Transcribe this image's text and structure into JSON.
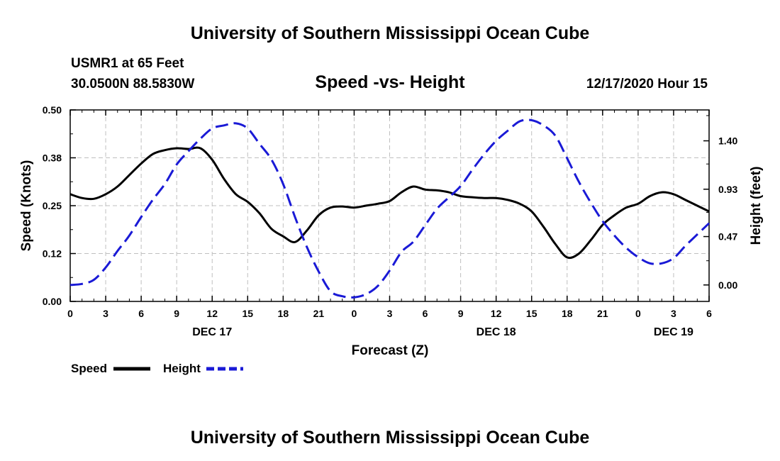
{
  "header": {
    "title": "University of Southern Mississippi Ocean Cube",
    "station": "USMR1 at 65 Feet",
    "location": "30.0500N 88.5830W",
    "plot_title": "Speed -vs- Height",
    "timestamp": "12/17/2020 Hour 15"
  },
  "footer": {
    "title": "University of Southern Mississippi Ocean Cube"
  },
  "legend": {
    "speed_label": "Speed",
    "height_label": "Height"
  },
  "colors": {
    "speed": "#000000",
    "height": "#1a1ad6",
    "grid": "#bfbfbf"
  },
  "chart_data": {
    "type": "line",
    "title": "Speed -vs- Height",
    "xlabel": "Forecast (Z)",
    "ylabel": "Speed (Knots)",
    "y2label": "Height (feet)",
    "xlim": [
      0,
      54
    ],
    "ylim": [
      0,
      0.5
    ],
    "y2lim": [
      -0.16,
      1.7
    ],
    "x_unit": "hours since 12/17 00Z",
    "x_ticks": [
      0,
      3,
      6,
      9,
      12,
      15,
      18,
      21,
      24,
      27,
      30,
      33,
      36,
      39,
      42,
      45,
      48,
      51,
      54
    ],
    "x_tick_labels": [
      "0",
      "3",
      "6",
      "9",
      "12",
      "15",
      "18",
      "21",
      "0",
      "3",
      "6",
      "9",
      "12",
      "15",
      "18",
      "21",
      "0",
      "3",
      "6"
    ],
    "day_labels": [
      {
        "x": 12,
        "label": "DEC 17"
      },
      {
        "x": 36,
        "label": "DEC 18"
      },
      {
        "x": 51,
        "label": "DEC 19"
      }
    ],
    "y_ticks": [
      0.0,
      0.125,
      0.25,
      0.375,
      0.5
    ],
    "y_tick_labels": [
      "0.00",
      "0.12",
      "0.25",
      "0.38",
      "0.50"
    ],
    "y2_ticks": [
      0.0,
      0.47,
      0.93,
      1.4
    ],
    "y2_tick_labels": [
      "0.00",
      "0.47",
      "0.93",
      "1.40"
    ],
    "grid": true,
    "legend_position": "bottom-left",
    "series": [
      {
        "name": "Speed",
        "axis": "left",
        "style": "solid",
        "x": [
          0,
          1,
          2,
          3,
          4,
          5,
          6,
          7,
          8,
          9,
          10,
          11,
          12,
          13,
          14,
          15,
          16,
          17,
          18,
          19,
          20,
          21,
          22,
          23,
          24,
          25,
          26,
          27,
          28,
          29,
          30,
          31,
          32,
          33,
          34,
          35,
          36,
          37,
          38,
          39,
          40,
          41,
          42,
          43,
          44,
          45,
          46,
          47,
          48,
          49,
          50,
          51,
          52,
          53,
          54
        ],
        "values": [
          0.28,
          0.27,
          0.268,
          0.28,
          0.3,
          0.33,
          0.36,
          0.385,
          0.395,
          0.4,
          0.398,
          0.4,
          0.37,
          0.32,
          0.28,
          0.26,
          0.23,
          0.19,
          0.17,
          0.155,
          0.185,
          0.225,
          0.245,
          0.248,
          0.245,
          0.25,
          0.255,
          0.262,
          0.285,
          0.3,
          0.292,
          0.29,
          0.285,
          0.275,
          0.272,
          0.27,
          0.27,
          0.265,
          0.255,
          0.235,
          0.195,
          0.15,
          0.115,
          0.125,
          0.16,
          0.2,
          0.225,
          0.245,
          0.255,
          0.275,
          0.285,
          0.28,
          0.265,
          0.25,
          0.235
        ]
      },
      {
        "name": "Height",
        "axis": "right",
        "style": "dashed",
        "x": [
          0,
          1,
          2,
          3,
          4,
          5,
          6,
          7,
          8,
          9,
          10,
          11,
          12,
          13,
          14,
          15,
          16,
          17,
          18,
          19,
          20,
          21,
          22,
          23,
          24,
          25,
          26,
          27,
          28,
          29,
          30,
          31,
          32,
          33,
          34,
          35,
          36,
          37,
          38,
          39,
          40,
          41,
          42,
          43,
          44,
          45,
          46,
          47,
          48,
          49,
          50,
          51,
          52,
          53,
          54
        ],
        "values": [
          0.0,
          0.01,
          0.05,
          0.17,
          0.33,
          0.48,
          0.66,
          0.83,
          0.98,
          1.17,
          1.3,
          1.42,
          1.52,
          1.55,
          1.57,
          1.52,
          1.37,
          1.22,
          0.98,
          0.66,
          0.37,
          0.13,
          -0.06,
          -0.11,
          -0.12,
          -0.09,
          -0.01,
          0.14,
          0.32,
          0.42,
          0.58,
          0.74,
          0.85,
          0.96,
          1.12,
          1.27,
          1.4,
          1.5,
          1.59,
          1.6,
          1.55,
          1.45,
          1.23,
          1.0,
          0.8,
          0.62,
          0.48,
          0.36,
          0.27,
          0.21,
          0.21,
          0.26,
          0.38,
          0.49,
          0.6
        ]
      }
    ]
  }
}
